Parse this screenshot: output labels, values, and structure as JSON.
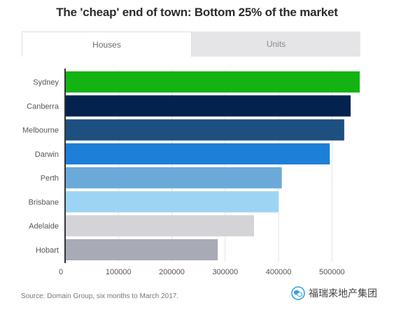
{
  "tabs": [
    {
      "label": "Houses",
      "active": true
    },
    {
      "label": "Units",
      "active": false
    }
  ],
  "source": "Source: Domain Group, six months to March 2017.",
  "watermark": {
    "icon": "wechat-logo-icon",
    "text": "福瑞来地产集团"
  },
  "colors": {
    "Sydney": "#13b313",
    "Canberra": "#03234e",
    "Melbourne": "#1d4f80",
    "Darwin": "#1e7fd8",
    "Perth": "#6baad8",
    "Brisbane": "#9dd4f4",
    "Adelaide": "#d3d3d8",
    "Hobart": "#a8aab6"
  },
  "chart_data": {
    "type": "bar",
    "orientation": "horizontal",
    "title": "The 'cheap' end of town: Bottom 25% of the market",
    "categories": [
      "Sydney",
      "Canberra",
      "Melbourne",
      "Darwin",
      "Perth",
      "Brisbane",
      "Adelaide",
      "Hobart"
    ],
    "values": [
      552000,
      535000,
      523000,
      496000,
      406000,
      400000,
      354000,
      286000
    ],
    "xlim": [
      0,
      552000
    ],
    "xticks": [
      0,
      100000,
      200000,
      300000,
      400000,
      500000
    ],
    "xlabel": "",
    "ylabel": "",
    "grid": true
  }
}
